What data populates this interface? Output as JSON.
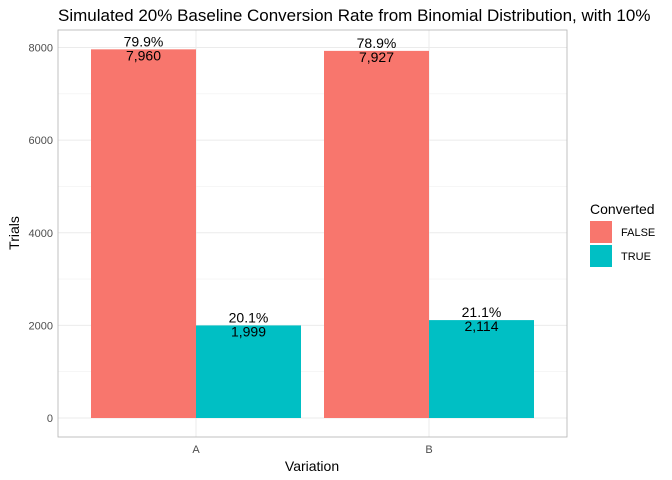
{
  "chart_data": {
    "type": "bar",
    "title": "Simulated 20% Baseline Conversion Rate from Binomial Distribution, with 10%",
    "xlabel": "Variation",
    "ylabel": "Trials",
    "categories": [
      "A",
      "B"
    ],
    "ylim": [
      0,
      8400
    ],
    "yticks": [
      0,
      2000,
      4000,
      6000,
      8000
    ],
    "ytick_labels": [
      "0",
      "2000",
      "4000",
      "6000",
      "8000"
    ],
    "grid": true,
    "legend": {
      "title": "Converted",
      "position": "right"
    },
    "series": [
      {
        "name": "FALSE",
        "color": "#F8766D",
        "values": [
          7960,
          7927
        ],
        "count_labels": [
          "7,960",
          "7,927"
        ],
        "percent_labels": [
          "79.9%",
          "78.9%"
        ]
      },
      {
        "name": "TRUE",
        "color": "#00BFC4",
        "values": [
          1999,
          2114
        ],
        "count_labels": [
          "1,999",
          "2,114"
        ],
        "percent_labels": [
          "20.1%",
          "21.1%"
        ]
      }
    ]
  }
}
